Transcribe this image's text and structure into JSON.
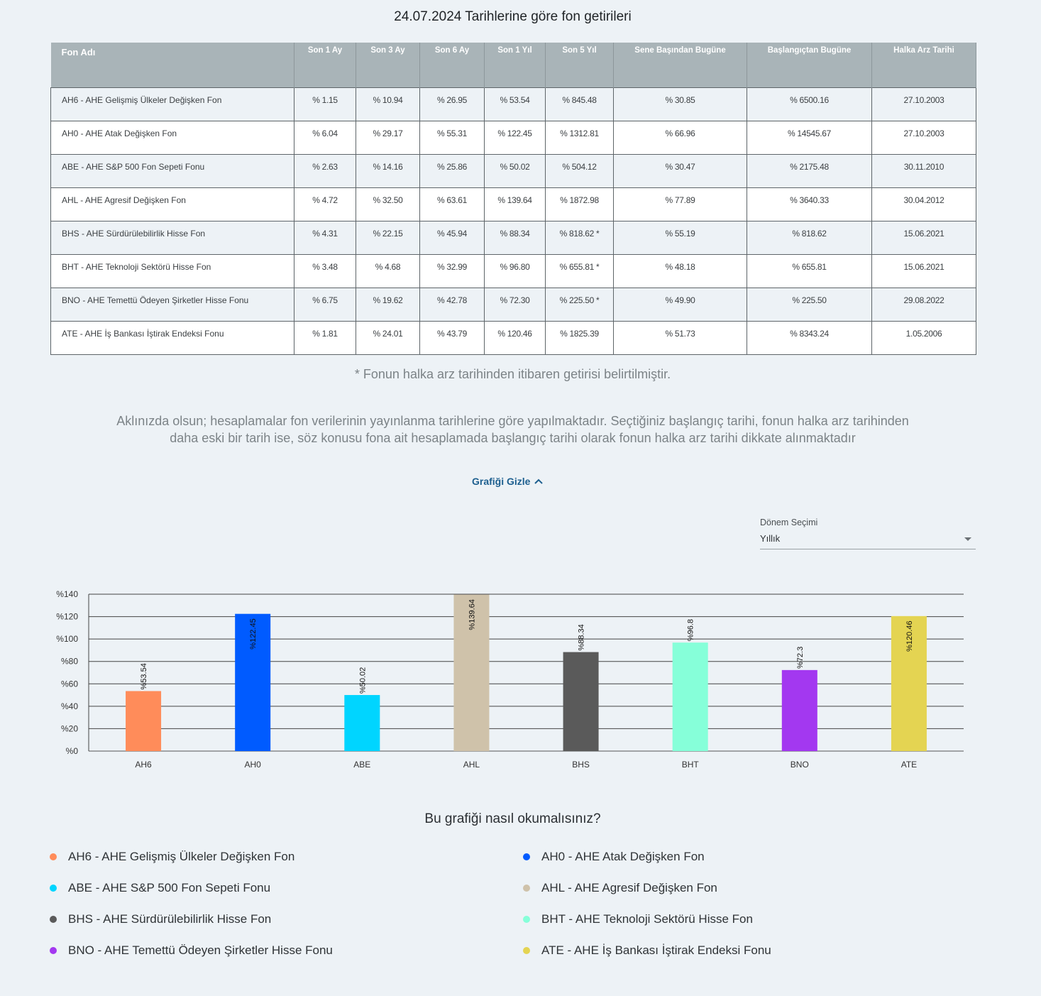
{
  "page_title": "24.07.2024 Tarihlerine göre fon getirileri",
  "table": {
    "headers": [
      "Fon Adı",
      "Son 1 Ay",
      "Son 3 Ay",
      "Son 6 Ay",
      "Son 1 Yıl",
      "Son 5 Yıl",
      "Sene Başından Bugüne",
      "Başlangıçtan Bugüne",
      "Halka Arz Tarihi"
    ],
    "rows": [
      [
        "AH6 - AHE Gelişmiş Ülkeler Değişken Fon",
        "% 1.15",
        "% 10.94",
        "% 26.95",
        "% 53.54",
        "% 845.48",
        "% 30.85",
        "% 6500.16",
        "27.10.2003"
      ],
      [
        "AH0 - AHE Atak Değişken Fon",
        "% 6.04",
        "% 29.17",
        "% 55.31",
        "% 122.45",
        "% 1312.81",
        "% 66.96",
        "% 14545.67",
        "27.10.2003"
      ],
      [
        "ABE - AHE S&P 500 Fon Sepeti Fonu",
        "% 2.63",
        "% 14.16",
        "% 25.86",
        "% 50.02",
        "% 504.12",
        "% 30.47",
        "% 2175.48",
        "30.11.2010"
      ],
      [
        "AHL - AHE Agresif Değişken Fon",
        "% 4.72",
        "% 32.50",
        "% 63.61",
        "% 139.64",
        "% 1872.98",
        "% 77.89",
        "% 3640.33",
        "30.04.2012"
      ],
      [
        "BHS - AHE Sürdürülebilirlik Hisse Fon",
        "% 4.31",
        "% 22.15",
        "% 45.94",
        "% 88.34",
        "% 818.62 *",
        "% 55.19",
        "% 818.62",
        "15.06.2021"
      ],
      [
        "BHT - AHE Teknoloji Sektörü Hisse Fon",
        "% 3.48",
        "% 4.68",
        "% 32.99",
        "% 96.80",
        "% 655.81 *",
        "% 48.18",
        "% 655.81",
        "15.06.2021"
      ],
      [
        "BNO - AHE Temettü Ödeyen Şirketler Hisse Fonu",
        "% 6.75",
        "% 19.62",
        "% 42.78",
        "% 72.30",
        "% 225.50 *",
        "% 49.90",
        "% 225.50",
        "29.08.2022"
      ],
      [
        "ATE - AHE İş Bankası İştirak Endeksi Fonu",
        "% 1.81",
        "% 24.01",
        "% 43.79",
        "% 120.46",
        "% 1825.39",
        "% 51.73",
        "% 8343.24",
        "1.05.2006"
      ]
    ]
  },
  "footnote": "* Fonun halka arz tarihinden itibaren getirisi belirtilmiştir.",
  "notice_line1": "Aklınızda olsun; hesaplamalar fon verilerinin yayınlanma tarihlerine göre yapılmaktadır. Seçtiğiniz başlangıç tarihi, fonun halka arz tarihinden",
  "notice_line2": "daha eski bir tarih ise, söz konusu fona ait hesaplamada başlangıç tarihi olarak fonun halka arz tarihi dikkate alınmaktadır",
  "toggle_label": "Grafiği Gizle",
  "period": {
    "label": "Dönem Seçimi",
    "value": "Yıllık"
  },
  "chart_data": {
    "type": "bar",
    "categories": [
      "AH6",
      "AH0",
      "ABE",
      "AHL",
      "BHS",
      "BHT",
      "BNO",
      "ATE"
    ],
    "values": [
      53.54,
      122.45,
      50.02,
      139.64,
      88.34,
      96.8,
      72.3,
      120.46
    ],
    "value_labels": [
      "%53.54",
      "%122.45",
      "%50.02",
      "%139.64",
      "%88.34",
      "%96.8",
      "%72.3",
      "%120.46"
    ],
    "colors": [
      "#ff8c5a",
      "#005bff",
      "#00d5ff",
      "#cfc2aa",
      "#5a5a5a",
      "#86ffd9",
      "#a338f0",
      "#e4d452"
    ],
    "ylim": [
      0,
      140
    ],
    "yticks": [
      "%0",
      "%20",
      "%40",
      "%60",
      "%80",
      "%100",
      "%120",
      "%140"
    ],
    "ytick_values": [
      0,
      20,
      40,
      60,
      80,
      100,
      120,
      140
    ],
    "grid": true
  },
  "legend_title": "Bu grafiği nasıl okumalısınız?",
  "legend": [
    {
      "label": "AH6 - AHE Gelişmiş Ülkeler Değişken Fon",
      "color": "#ff8c5a"
    },
    {
      "label": "AH0 - AHE Atak Değişken Fon",
      "color": "#005bff"
    },
    {
      "label": "ABE - AHE S&P 500 Fon Sepeti Fonu",
      "color": "#00d5ff"
    },
    {
      "label": "AHL - AHE Agresif Değişken Fon",
      "color": "#cfc2aa"
    },
    {
      "label": "BHS - AHE Sürdürülebilirlik Hisse Fon",
      "color": "#5a5a5a"
    },
    {
      "label": "BHT - AHE Teknoloji Sektörü Hisse Fon",
      "color": "#86ffd9"
    },
    {
      "label": "BNO - AHE Temettü Ödeyen Şirketler Hisse Fonu",
      "color": "#a338f0"
    },
    {
      "label": "ATE - AHE İş Bankası İştirak Endeksi Fonu",
      "color": "#e4d452"
    }
  ]
}
